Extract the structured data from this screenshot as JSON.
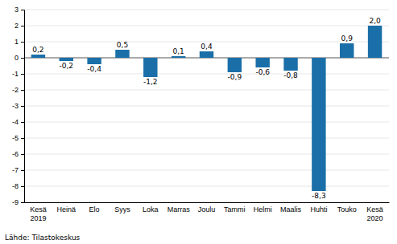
{
  "chart_data": {
    "type": "bar",
    "categories": [
      "Kesä\n2019",
      "Heinä",
      "Elo",
      "Syys",
      "Loka",
      "Marras",
      "Joulu",
      "Tammi",
      "Helmi",
      "Maalis",
      "Huhti",
      "Touko",
      "Kesä\n2020"
    ],
    "values": [
      0.2,
      -0.2,
      -0.4,
      0.5,
      -1.2,
      0.1,
      0.4,
      -0.9,
      -0.6,
      -0.8,
      -8.3,
      0.9,
      2.0
    ],
    "value_labels": [
      "0,2",
      "-0,2",
      "-0,4",
      "0,5",
      "-1,2",
      "0,1",
      "0,4",
      "-0,9",
      "-0,6",
      "-0,8",
      "-8,3",
      "0,9",
      "2,0"
    ],
    "data_labels": true,
    "color": "#1a6fa8",
    "ylim": [
      -9,
      3
    ],
    "yticks": [
      -9,
      -8,
      -7,
      -6,
      -5,
      -4,
      -3,
      -2,
      -1,
      0,
      1,
      2,
      3
    ],
    "grid": true,
    "source": "Lähde: Tilastokeskus"
  }
}
